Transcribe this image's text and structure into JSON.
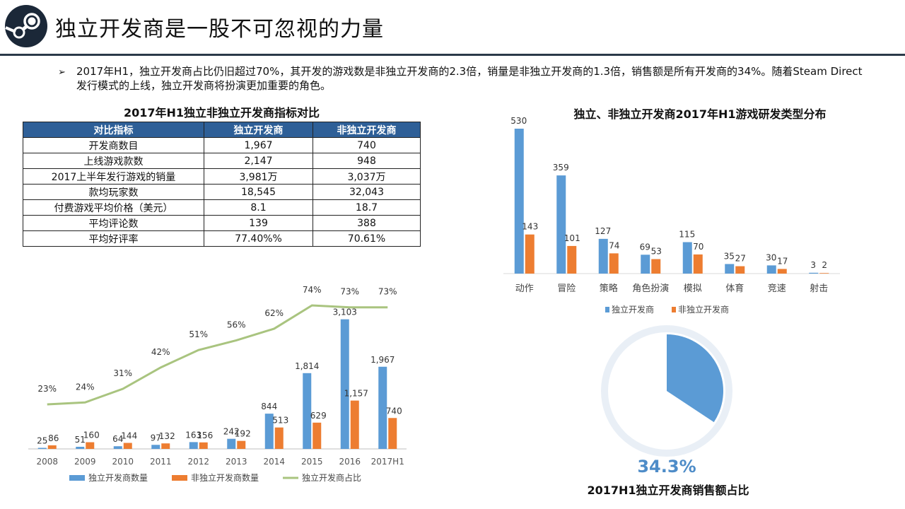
{
  "page": {
    "title": "独立开发商是一股不可忽视的力量",
    "bullet_symbol": "➢",
    "intro": "2017年H1，独立开发商占比仍旧超过70%，其开发的游戏数是非独立开发商的2.3倍，销量是非独立开发商的1.3倍，销售额是所有开发商的34%。随着Steam Direct发行模式的上线，独立开发商将扮演更加重要的角色。"
  },
  "colors": {
    "blue": "#5b9bd5",
    "orange": "#ed7d31",
    "green": "#a9c47f",
    "header": "#2e5f97",
    "rule": "#2b3a49"
  },
  "comparison_table": {
    "title": "2017年H1独立非独立开发商指标对比",
    "headers": [
      "对比指标",
      "独立开发商",
      "非独立开发商"
    ],
    "rows": [
      [
        "开发商数目",
        "1,967",
        "740"
      ],
      [
        "上线游戏款数",
        "2,147",
        "948"
      ],
      [
        "2017上半年发行游戏的销量",
        "3,981万",
        "3,037万"
      ],
      [
        "款均玩家数",
        "18,545",
        "32,043"
      ],
      [
        "付费游戏平均价格（美元）",
        "8.1",
        "18.7"
      ],
      [
        "平均评论数",
        "139",
        "388"
      ],
      [
        "平均好评率",
        "77.40%%",
        "70.61%"
      ]
    ]
  },
  "chart_data": [
    {
      "type": "bar",
      "title": "",
      "categories": [
        "2008",
        "2009",
        "2010",
        "2011",
        "2012",
        "2013",
        "2014",
        "2015",
        "2016",
        "2017H1"
      ],
      "series": [
        {
          "name": "独立开发商数量",
          "type": "bar",
          "values": [
            25,
            51,
            64,
            97,
            163,
            242,
            844,
            1814,
            3103,
            1967
          ],
          "labels": [
            "25",
            "51",
            "64",
            "97",
            "163",
            "242",
            "844",
            "1,814",
            "3,103",
            "1,967"
          ]
        },
        {
          "name": "非独立开发商数量",
          "type": "bar",
          "values": [
            86,
            160,
            144,
            132,
            156,
            192,
            513,
            629,
            1157,
            740
          ],
          "labels": [
            "86",
            "160",
            "144",
            "132",
            "156",
            "192",
            "513",
            "629",
            "1,157",
            "740"
          ]
        },
        {
          "name": "独立开发商占比",
          "type": "line",
          "values": [
            23,
            24,
            31,
            42,
            51,
            56,
            62,
            74,
            73,
            73
          ],
          "labels": [
            "23%",
            "24%",
            "31%",
            "42%",
            "51%",
            "56%",
            "62%",
            "74%",
            "73%",
            "73%"
          ]
        }
      ],
      "ylim": [
        0,
        3300
      ],
      "legend": "bottom"
    },
    {
      "type": "bar",
      "title": "独立、非独立开发商2017年H1游戏研发类型分布",
      "categories": [
        "动作",
        "冒险",
        "策略",
        "角色扮演",
        "模拟",
        "体育",
        "竞速",
        "射击"
      ],
      "series": [
        {
          "name": "独立开发商",
          "values": [
            530,
            359,
            127,
            69,
            115,
            35,
            30,
            3
          ]
        },
        {
          "name": "非独立开发商",
          "values": [
            143,
            101,
            74,
            53,
            70,
            27,
            17,
            2
          ]
        }
      ],
      "ylim": [
        0,
        560
      ],
      "legend": "bottom"
    },
    {
      "type": "pie",
      "title": "2017H1独立开发商销售额占比",
      "values": [
        34.3
      ],
      "label": "34.3%"
    }
  ]
}
